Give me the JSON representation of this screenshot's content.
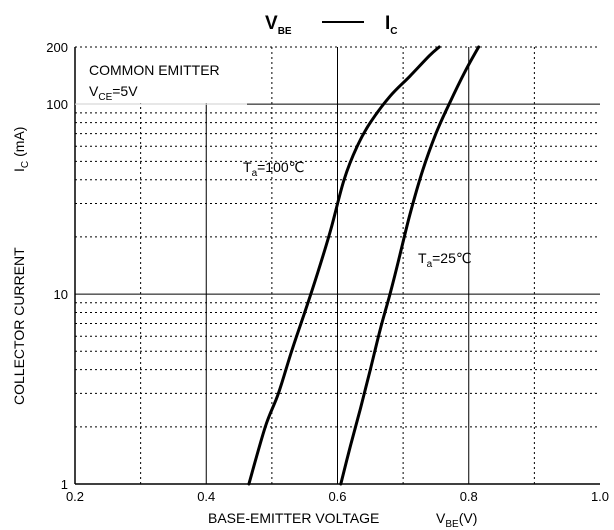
{
  "chart_data": {
    "type": "line",
    "title": {
      "left": "V",
      "left_sub": "BE",
      "right": "I",
      "right_sub": "C"
    },
    "xlabel": {
      "text": "BASE-EMITTER VOLTAGE",
      "symbol": "V",
      "symbol_sub": "BE",
      "unit": "(V)"
    },
    "ylabel": {
      "text": "COLLECTOR CURRENT",
      "symbol": "I",
      "symbol_sub": "C",
      "unit": "(mA)"
    },
    "x_scale": "linear",
    "y_scale": "log",
    "xlim": [
      0.2,
      1.0
    ],
    "ylim": [
      1,
      200
    ],
    "x_ticks": [
      {
        "value": 0.2,
        "label": "0.2"
      },
      {
        "value": 0.4,
        "label": "0.4"
      },
      {
        "value": 0.6,
        "label": "0.6"
      },
      {
        "value": 0.8,
        "label": "0.8"
      },
      {
        "value": 1.0,
        "label": "1.0"
      }
    ],
    "y_ticks": [
      {
        "value": 1,
        "label": "1"
      },
      {
        "value": 10,
        "label": "10"
      },
      {
        "value": 100,
        "label": "100"
      },
      {
        "value": 200,
        "label": "200"
      }
    ],
    "grid": true,
    "annotations": {
      "condition_line1": "COMMON EMITTER",
      "condition_line2_main": "V",
      "condition_line2_sub": "CE",
      "condition_line2_rest": "=5V"
    },
    "series": [
      {
        "label_main": "T",
        "label_sub": "a",
        "label_rest": "=100℃",
        "x": [
          0.465,
          0.49,
          0.51,
          0.53,
          0.55,
          0.57,
          0.59,
          0.61,
          0.63,
          0.65,
          0.68,
          0.71,
          0.74,
          0.755
        ],
        "y": [
          1,
          2,
          3,
          5,
          8,
          13,
          22,
          40,
          60,
          80,
          110,
          140,
          180,
          200
        ]
      },
      {
        "label_main": "T",
        "label_sub": "a",
        "label_rest": "=25℃",
        "x": [
          0.605,
          0.62,
          0.635,
          0.65,
          0.665,
          0.68,
          0.695,
          0.71,
          0.73,
          0.75,
          0.77,
          0.795,
          0.815
        ],
        "y": [
          1,
          1.6,
          2.5,
          4,
          6.5,
          10,
          16,
          26,
          45,
          70,
          100,
          150,
          200
        ]
      }
    ]
  }
}
